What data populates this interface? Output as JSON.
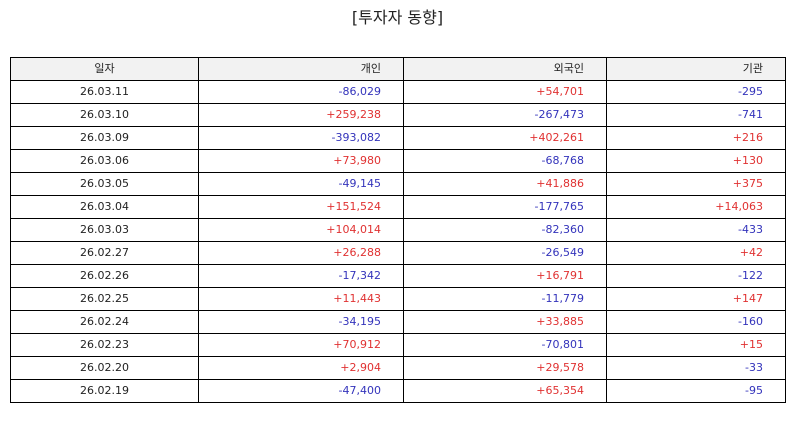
{
  "title": "[투자자 동향]",
  "headers": [
    "일자",
    "개인",
    "외국인",
    "기관"
  ],
  "colors": {
    "positive": "#e03131",
    "negative": "#3333bb"
  },
  "rows": [
    {
      "date": "26.03.11",
      "individual": "-86,029",
      "foreign": "+54,701",
      "institution": "-295"
    },
    {
      "date": "26.03.10",
      "individual": "+259,238",
      "foreign": "-267,473",
      "institution": "-741"
    },
    {
      "date": "26.03.09",
      "individual": "-393,082",
      "foreign": "+402,261",
      "institution": "+216"
    },
    {
      "date": "26.03.06",
      "individual": "+73,980",
      "foreign": "-68,768",
      "institution": "+130"
    },
    {
      "date": "26.03.05",
      "individual": "-49,145",
      "foreign": "+41,886",
      "institution": "+375"
    },
    {
      "date": "26.03.04",
      "individual": "+151,524",
      "foreign": "-177,765",
      "institution": "+14,063"
    },
    {
      "date": "26.03.03",
      "individual": "+104,014",
      "foreign": "-82,360",
      "institution": "-433"
    },
    {
      "date": "26.02.27",
      "individual": "+26,288",
      "foreign": "-26,549",
      "institution": "+42"
    },
    {
      "date": "26.02.26",
      "individual": "-17,342",
      "foreign": "+16,791",
      "institution": "-122"
    },
    {
      "date": "26.02.25",
      "individual": "+11,443",
      "foreign": "-11,779",
      "institution": "+147"
    },
    {
      "date": "26.02.24",
      "individual": "-34,195",
      "foreign": "+33,885",
      "institution": "-160"
    },
    {
      "date": "26.02.23",
      "individual": "+70,912",
      "foreign": "-70,801",
      "institution": "+15"
    },
    {
      "date": "26.02.20",
      "individual": "+2,904",
      "foreign": "+29,578",
      "institution": "-33"
    },
    {
      "date": "26.02.19",
      "individual": "-47,400",
      "foreign": "+65,354",
      "institution": "-95"
    }
  ]
}
